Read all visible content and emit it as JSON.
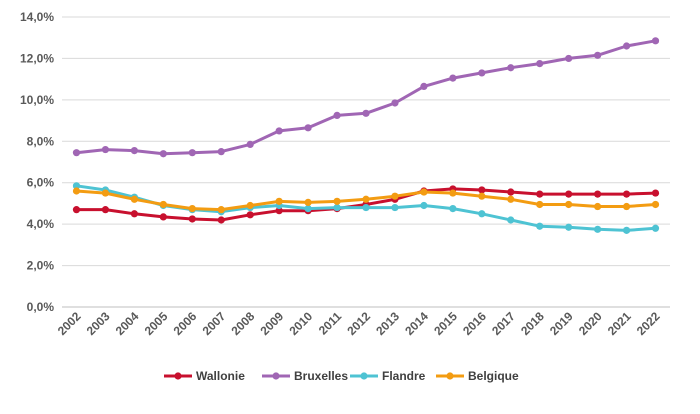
{
  "chart_data": {
    "type": "line",
    "x": [
      "2002",
      "2003",
      "2004",
      "2005",
      "2006",
      "2007",
      "2008",
      "2009",
      "2010",
      "2011",
      "2012",
      "2013",
      "2014",
      "2015",
      "2016",
      "2017",
      "2018",
      "2019",
      "2020",
      "2021",
      "2022"
    ],
    "ylim": [
      0,
      14
    ],
    "yticks": [
      0,
      2,
      4,
      6,
      8,
      10,
      12,
      14
    ],
    "ytick_labels": [
      "0,0%",
      "2,0%",
      "4,0%",
      "6,0%",
      "8,0%",
      "10,0%",
      "12,0%",
      "14,0%"
    ],
    "grid": true,
    "legend_position": "bottom",
    "series": [
      {
        "name": "Wallonie",
        "color": "#c8102e",
        "values": [
          4.7,
          4.7,
          4.5,
          4.35,
          4.25,
          4.2,
          4.45,
          4.65,
          4.65,
          4.75,
          4.95,
          5.2,
          5.6,
          5.7,
          5.65,
          5.55,
          5.45,
          5.45,
          5.45,
          5.45,
          5.5
        ]
      },
      {
        "name": "Bruxelles",
        "color": "#a066b4",
        "values": [
          7.45,
          7.6,
          7.55,
          7.4,
          7.45,
          7.5,
          7.85,
          8.5,
          8.65,
          9.25,
          9.35,
          9.85,
          10.65,
          11.05,
          11.3,
          11.55,
          11.75,
          12.0,
          12.15,
          12.6,
          12.85
        ]
      },
      {
        "name": "Flandre",
        "color": "#4ec3d3",
        "values": [
          5.85,
          5.65,
          5.3,
          4.9,
          4.7,
          4.6,
          4.8,
          4.9,
          4.75,
          4.8,
          4.8,
          4.8,
          4.9,
          4.75,
          4.5,
          4.2,
          3.9,
          3.85,
          3.75,
          3.7,
          3.8
        ]
      },
      {
        "name": "Belgique",
        "color": "#f39c12",
        "values": [
          5.6,
          5.5,
          5.2,
          4.95,
          4.75,
          4.7,
          4.9,
          5.1,
          5.05,
          5.1,
          5.2,
          5.35,
          5.55,
          5.5,
          5.35,
          5.2,
          4.95,
          4.95,
          4.85,
          4.85,
          4.95
        ]
      }
    ]
  }
}
